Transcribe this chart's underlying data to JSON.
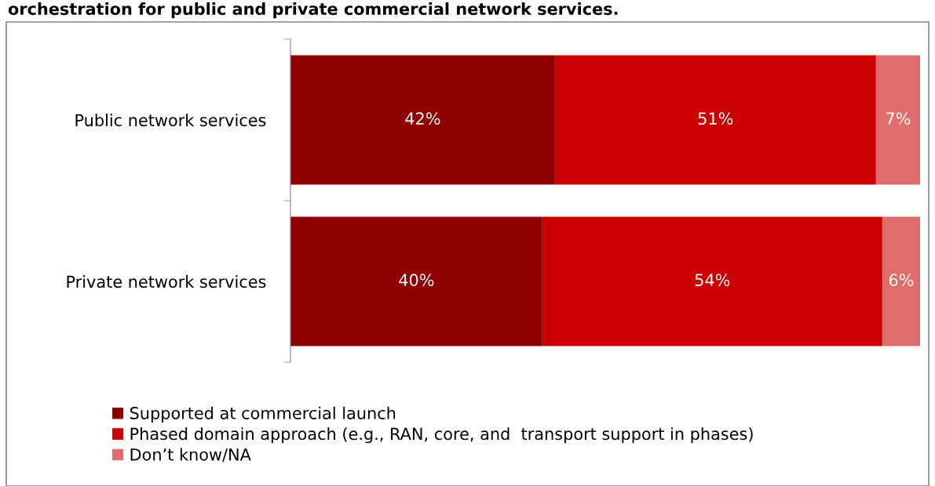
{
  "chart_data": {
    "type": "bar",
    "orientation": "horizontal",
    "stacked": true,
    "title": "orchestration for public and private commercial network services.",
    "categories": [
      "Public network services",
      "Private network services"
    ],
    "series": [
      {
        "name": "Supported at commercial launch",
        "color": "#900000",
        "values": [
          42,
          40
        ],
        "value_labels": [
          "42%",
          "40%"
        ]
      },
      {
        "name": "Phased domain approach (e.g., RAN, core, and  transport support in phases)",
        "color": "#cc0000",
        "values": [
          51,
          54
        ],
        "value_labels": [
          "51%",
          "54%"
        ]
      },
      {
        "name": "Don’t know/NA",
        "color": "#e06c6c",
        "values": [
          7,
          6
        ],
        "value_labels": [
          "7%",
          "6%"
        ]
      }
    ],
    "legend": "bottom",
    "grid": false
  }
}
